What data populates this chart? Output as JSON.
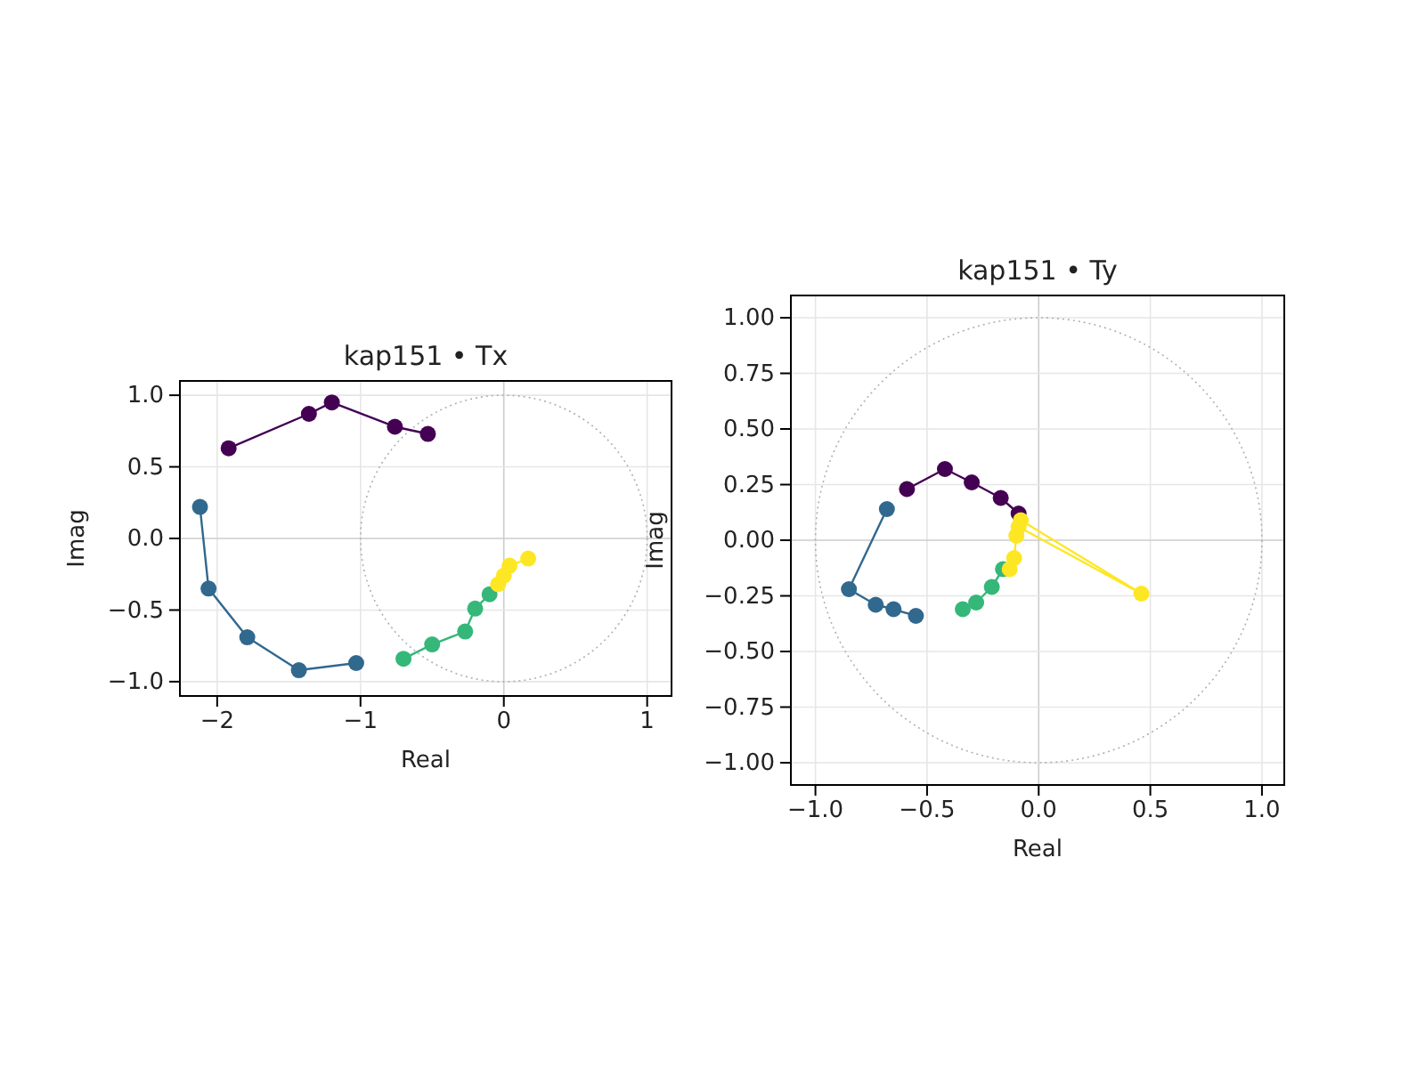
{
  "chart_data": [
    {
      "type": "line",
      "title": "kap151 • Tx",
      "xlabel": "Real",
      "ylabel": "Imag",
      "xlim": [
        -2.26,
        1.17
      ],
      "ylim": [
        -1.1,
        1.1
      ],
      "xticks": [
        {
          "value": -2,
          "label": "−2"
        },
        {
          "value": -1,
          "label": "−1"
        },
        0,
        1
      ],
      "yticks": [
        {
          "value": -1,
          "label": "−1.0"
        },
        {
          "value": -0.5,
          "label": "−0.5"
        },
        {
          "value": 0,
          "label": "0.0"
        },
        {
          "value": 0.5,
          "label": "0.5"
        },
        {
          "value": 1,
          "label": "1.0"
        }
      ],
      "grid": true,
      "marker": "circle",
      "series": [
        {
          "color": "#440154",
          "x": [
            -1.92,
            -1.36,
            -1.2,
            -0.76,
            -0.53
          ],
          "values": [
            0.63,
            0.87,
            0.95,
            0.78,
            0.73
          ]
        },
        {
          "color": "#31688e",
          "x": [
            -2.12,
            -2.06,
            -1.79,
            -1.43,
            -1.03
          ],
          "values": [
            0.22,
            -0.35,
            -0.69,
            -0.92,
            -0.87
          ]
        },
        {
          "color": "#35b779",
          "x": [
            -0.7,
            -0.5,
            -0.27,
            -0.2,
            -0.1
          ],
          "values": [
            -0.84,
            -0.74,
            -0.65,
            -0.49,
            -0.39
          ]
        },
        {
          "color": "#fde725",
          "x": [
            -0.04,
            0,
            0.04,
            0.17
          ],
          "values": [
            -0.32,
            -0.26,
            -0.19,
            -0.14
          ]
        }
      ]
    },
    {
      "type": "line",
      "title": "kap151 • Ty",
      "xlabel": "Real",
      "ylabel": "Imag",
      "xlim": [
        -1.11,
        1.1
      ],
      "ylim": [
        -1.1,
        1.1
      ],
      "xticks": [
        {
          "value": -1,
          "label": "−1.0"
        },
        {
          "value": -0.5,
          "label": "−0.5"
        },
        {
          "value": 0,
          "label": "0.0"
        },
        {
          "value": 0.5,
          "label": "0.5"
        },
        {
          "value": 1,
          "label": "1.0"
        }
      ],
      "yticks": [
        {
          "value": -1,
          "label": "−1.00"
        },
        {
          "value": -0.75,
          "label": "−0.75"
        },
        {
          "value": -0.5,
          "label": "−0.50"
        },
        {
          "value": -0.25,
          "label": "−0.25"
        },
        {
          "value": 0,
          "label": "0.00"
        },
        {
          "value": 0.25,
          "label": "0.25"
        },
        {
          "value": 0.5,
          "label": "0.50"
        },
        {
          "value": 0.75,
          "label": "0.75"
        },
        {
          "value": 1,
          "label": "1.00"
        }
      ],
      "grid": true,
      "marker": "circle",
      "series": [
        {
          "color": "#440154",
          "x": [
            -0.59,
            -0.42,
            -0.3,
            -0.17,
            -0.09
          ],
          "values": [
            0.23,
            0.32,
            0.26,
            0.19,
            0.12
          ]
        },
        {
          "color": "#31688e",
          "x": [
            -0.68,
            -0.85,
            -0.73,
            -0.65,
            -0.55
          ],
          "values": [
            0.14,
            -0.22,
            -0.29,
            -0.31,
            -0.34
          ]
        },
        {
          "color": "#35b779",
          "x": [
            -0.34,
            -0.28,
            -0.21,
            -0.16
          ],
          "values": [
            -0.31,
            -0.28,
            -0.21,
            -0.13
          ]
        },
        {
          "color": "#fde725",
          "x": [
            -0.13,
            -0.11,
            -0.1,
            -0.09,
            0.46,
            -0.08
          ],
          "values": [
            -0.13,
            -0.08,
            0.02,
            0.06,
            -0.24,
            0.09
          ]
        }
      ]
    }
  ]
}
